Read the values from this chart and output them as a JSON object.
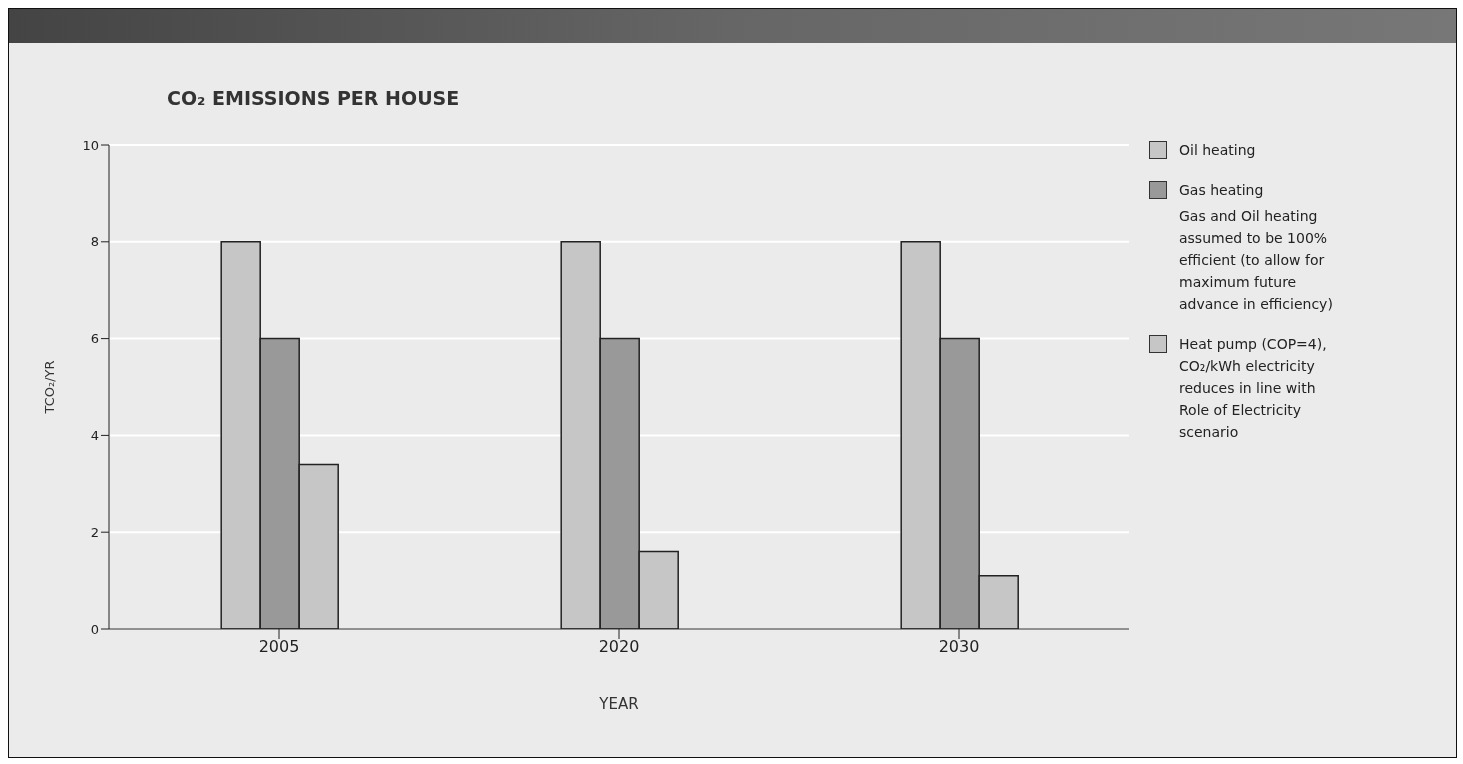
{
  "chart_data": {
    "type": "bar",
    "title": "CO₂ EMISSIONS PER HOUSE",
    "xlabel": "YEAR",
    "ylabel": "TCO₂/YR",
    "categories": [
      "2005",
      "2020",
      "2030"
    ],
    "series": [
      {
        "name": "Oil heating",
        "color": "#c6c6c6",
        "values": [
          8,
          8,
          8
        ]
      },
      {
        "name": "Gas heating",
        "color": "#999999",
        "values": [
          6,
          6,
          6
        ]
      },
      {
        "name": "Heat pump (COP=4), CO₂/kWh electricity reduces in line with Role of Electricity scenario",
        "color": "#c6c6c6",
        "values": [
          3.4,
          1.6,
          1.1
        ]
      }
    ],
    "annotations": [
      "Gas and Oil heating assumed to be 100% efficient (to allow for maximum future advance in efficiency)"
    ],
    "ylim": [
      0,
      10
    ],
    "yticks": [
      0,
      2,
      4,
      6,
      8,
      10
    ],
    "grid": "y",
    "legend": "right"
  }
}
